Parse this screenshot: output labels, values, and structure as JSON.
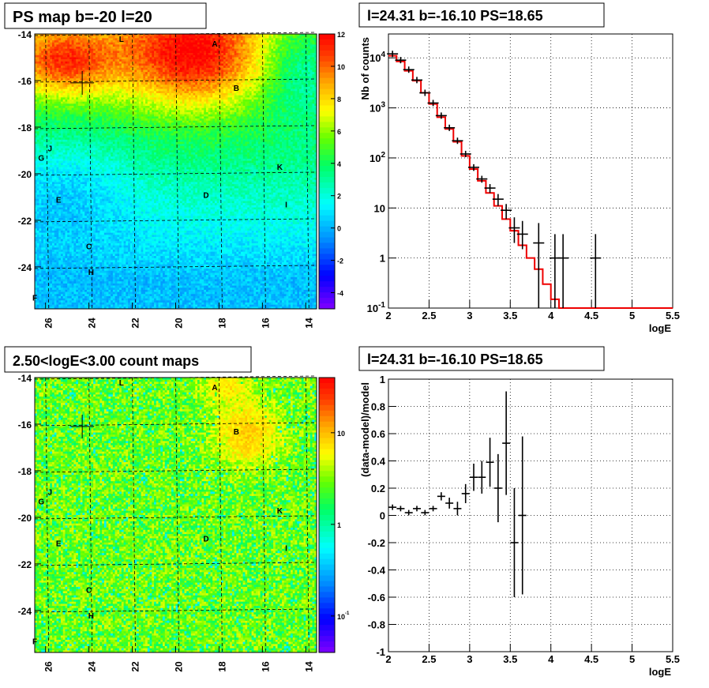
{
  "chart_data": [
    {
      "type": "heatmap",
      "title": "PS map b=-20 l=20",
      "x_ticks": [
        "26",
        "24",
        "22",
        "20",
        "18",
        "16",
        "14"
      ],
      "y_ticks": [
        "-14",
        "-16",
        "-18",
        "-20",
        "-22",
        "-24"
      ],
      "xlim": [
        26.5,
        13.5
      ],
      "ylim": [
        -25.8,
        -14
      ],
      "color_scale": {
        "min": -5,
        "max": 12,
        "ticks": [
          "-4",
          "-2",
          "0",
          "2",
          "4",
          "6",
          "8",
          "10",
          "12"
        ],
        "tick_values": [
          -4,
          -2,
          0,
          2,
          4,
          6,
          8,
          10,
          12
        ],
        "log": false
      },
      "source_labels": [
        {
          "text": "L",
          "l": 22.5,
          "b": -14.2
        },
        {
          "text": "A",
          "l": 18.2,
          "b": -14.4
        },
        {
          "text": "B",
          "l": 17.2,
          "b": -16.3
        },
        {
          "text": "J",
          "l": 25.8,
          "b": -18.9
        },
        {
          "text": "G",
          "l": 26.2,
          "b": -19.3
        },
        {
          "text": "K",
          "l": 15.2,
          "b": -19.7
        },
        {
          "text": "D",
          "l": 18.6,
          "b": -20.9
        },
        {
          "text": "E",
          "l": 25.4,
          "b": -21.1
        },
        {
          "text": "I",
          "l": 14.9,
          "b": -21.3
        },
        {
          "text": "C",
          "l": 24.0,
          "b": -23.1
        },
        {
          "text": "H",
          "l": 23.9,
          "b": -24.2
        },
        {
          "text": "F",
          "l": 26.5,
          "b": -25.3
        }
      ],
      "crosshair": {
        "l": 24.31,
        "b": -16.1
      }
    },
    {
      "type": "line",
      "title": "l=24.31 b=-16.10 PS=18.65",
      "xlabel": "logE",
      "ylabel": "Nb of counts",
      "xlim": [
        2,
        5.5
      ],
      "ylim": [
        0.1,
        30000
      ],
      "y_log": true,
      "x_ticks": [
        "2",
        "2.5",
        "3",
        "3.5",
        "4",
        "4.5",
        "5",
        "5.5"
      ],
      "y_ticks": [
        "10^{-1}",
        "1",
        "10",
        "10^{2}",
        "10^{3}",
        "10^{4}"
      ],
      "model": {
        "bin_edges": [
          2,
          2.1,
          2.2,
          2.3,
          2.4,
          2.5,
          2.6,
          2.7,
          2.8,
          2.9,
          3.0,
          3.1,
          3.2,
          3.3,
          3.4,
          3.5,
          3.6,
          3.7,
          3.8,
          3.9,
          4.0,
          4.1,
          4.2,
          4.3,
          4.4,
          4.5,
          4.6,
          4.7,
          4.8,
          4.9,
          5.0,
          5.1,
          5.2,
          5.3,
          5.4,
          5.5
        ],
        "values": [
          11000,
          8500,
          5500,
          3500,
          2000,
          1200,
          650,
          380,
          210,
          110,
          60,
          35,
          20,
          11,
          6,
          3.5,
          1.8,
          1.0,
          0.6,
          0.3,
          0.15,
          0.1,
          0.1,
          0.1,
          0.1,
          0.1,
          0.1,
          0.1,
          0.1,
          0.1,
          0.1,
          0.1,
          0.1,
          0.1,
          0.1
        ]
      },
      "data": {
        "x": [
          2.05,
          2.15,
          2.25,
          2.35,
          2.45,
          2.55,
          2.65,
          2.75,
          2.85,
          2.95,
          3.05,
          3.15,
          3.25,
          3.35,
          3.45,
          3.55,
          3.65,
          3.85,
          4.05,
          4.15,
          4.55
        ],
        "y": [
          12000,
          9000,
          5800,
          3600,
          2000,
          1250,
          700,
          400,
          220,
          120,
          65,
          38,
          25,
          15,
          9,
          4,
          3,
          2,
          1,
          1,
          1
        ],
        "err_lo": [
          0,
          0,
          0,
          0,
          0,
          0,
          0,
          0,
          0,
          0,
          10,
          6,
          5,
          4,
          3,
          2,
          1.5,
          1.9,
          0.9,
          0.9,
          0.9
        ],
        "err_hi": [
          0,
          0,
          0,
          0,
          0,
          0,
          0,
          0,
          0,
          0,
          10,
          6,
          5,
          4,
          3,
          2.5,
          2.5,
          3,
          2,
          2,
          2
        ]
      }
    },
    {
      "type": "heatmap",
      "title": "2.50<logE<3.00 count maps",
      "x_ticks": [
        "26",
        "24",
        "22",
        "20",
        "18",
        "16",
        "14"
      ],
      "y_ticks": [
        "-14",
        "-16",
        "-18",
        "-20",
        "-22",
        "-24"
      ],
      "xlim": [
        26.5,
        13.5
      ],
      "ylim": [
        -25.8,
        -14
      ],
      "color_scale": {
        "min": 0.04,
        "max": 40,
        "ticks": [
          "10^{-1}",
          "1",
          "10"
        ],
        "tick_values": [
          0.1,
          1,
          10
        ],
        "log": true
      },
      "source_labels": [
        {
          "text": "L",
          "l": 22.5,
          "b": -14.2
        },
        {
          "text": "A",
          "l": 18.2,
          "b": -14.4
        },
        {
          "text": "B",
          "l": 17.2,
          "b": -16.3
        },
        {
          "text": "J",
          "l": 25.8,
          "b": -18.9
        },
        {
          "text": "G",
          "l": 26.2,
          "b": -19.3
        },
        {
          "text": "K",
          "l": 15.2,
          "b": -19.7
        },
        {
          "text": "D",
          "l": 18.6,
          "b": -20.9
        },
        {
          "text": "E",
          "l": 25.4,
          "b": -21.1
        },
        {
          "text": "I",
          "l": 14.9,
          "b": -21.3
        },
        {
          "text": "C",
          "l": 24.0,
          "b": -23.1
        },
        {
          "text": "H",
          "l": 23.9,
          "b": -24.2
        },
        {
          "text": "F",
          "l": 26.5,
          "b": -25.3
        }
      ],
      "crosshair": {
        "l": 24.31,
        "b": -16.1
      }
    },
    {
      "type": "scatter",
      "title": "l=24.31 b=-16.10 PS=18.65",
      "xlabel": "logE",
      "ylabel": "(data-model)/model",
      "xlim": [
        2,
        5.5
      ],
      "ylim": [
        -1,
        1
      ],
      "x_ticks": [
        "2",
        "2.5",
        "3",
        "3.5",
        "4",
        "4.5",
        "5",
        "5.5"
      ],
      "y_ticks": [
        "-1",
        "-0.8",
        "-0.6",
        "-0.4",
        "-0.2",
        "0",
        "0.2",
        "0.4",
        "0.6",
        "0.8",
        "1"
      ],
      "data": {
        "x": [
          2.05,
          2.15,
          2.25,
          2.35,
          2.45,
          2.55,
          2.65,
          2.75,
          2.85,
          2.95,
          3.05,
          3.15,
          3.25,
          3.35,
          3.45,
          3.55,
          3.65
        ],
        "y": [
          0.06,
          0.05,
          0.02,
          0.05,
          0.02,
          0.05,
          0.14,
          0.09,
          0.05,
          0.16,
          0.28,
          0.28,
          0.39,
          0.2,
          0.53,
          -0.2,
          0.0
        ],
        "err": [
          0.005,
          0.007,
          0.01,
          0.012,
          0.016,
          0.02,
          0.03,
          0.04,
          0.05,
          0.07,
          0.1,
          0.12,
          0.18,
          0.25,
          0.38,
          0.4,
          0.58
        ]
      }
    }
  ]
}
